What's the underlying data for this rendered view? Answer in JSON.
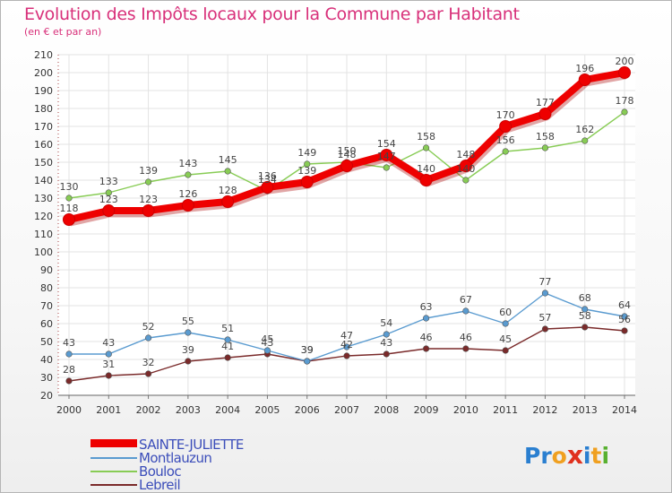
{
  "title": "Evolution des Impôts locaux pour la Commune par Habitant",
  "subtitle": "(en € et par an)",
  "chart_data": {
    "type": "line",
    "x": [
      "2000",
      "2001",
      "2002",
      "2003",
      "2004",
      "2005",
      "2006",
      "2007",
      "2008",
      "2009",
      "2010",
      "2011",
      "2012",
      "2013",
      "2014"
    ],
    "ylim": [
      20,
      210
    ],
    "yticks": [
      20,
      30,
      40,
      50,
      60,
      70,
      80,
      90,
      100,
      110,
      120,
      130,
      140,
      150,
      160,
      170,
      180,
      190,
      200,
      210
    ],
    "grid": true,
    "series": [
      {
        "name": "SAINTE-JULIETTE",
        "color": "#ee0000",
        "values": [
          118,
          123,
          123,
          126,
          128,
          136,
          139,
          148,
          154,
          140,
          148,
          170,
          177,
          196,
          200
        ]
      },
      {
        "name": "Montlauzun",
        "color": "#5a9bd0",
        "values": [
          43,
          43,
          52,
          55,
          51,
          45,
          39,
          47,
          54,
          63,
          67,
          60,
          77,
          68,
          64
        ]
      },
      {
        "name": "Bouloc",
        "color": "#88cc55",
        "values": [
          130,
          133,
          139,
          143,
          145,
          134,
          149,
          150,
          147,
          158,
          140,
          156,
          158,
          162,
          178
        ]
      },
      {
        "name": "Lebreil",
        "color": "#7a2a2a",
        "values": [
          28,
          31,
          32,
          39,
          41,
          43,
          39,
          42,
          43,
          46,
          46,
          45,
          57,
          58,
          56
        ]
      }
    ]
  },
  "labels": {
    "SAINTE-JULIETTE": [
      "118",
      "123",
      "123",
      "126",
      "128",
      "136",
      "139",
      "148",
      "154",
      "140",
      "148",
      "170",
      "177",
      "196",
      "200"
    ],
    "Montlauzun": [
      "43",
      "43",
      "52",
      "55",
      "51",
      "45",
      "39",
      "47",
      "54",
      "63",
      "67",
      "60",
      "77",
      "68",
      "64"
    ],
    "Bouloc": [
      "130",
      "133",
      "139",
      "143",
      "145",
      "134",
      "149",
      "150",
      "147",
      "158",
      "140",
      "156",
      "158",
      "162",
      "178"
    ],
    "Lebreil": [
      "28",
      "31",
      "32",
      "39",
      "41",
      "43",
      "39",
      "42",
      "43",
      "46",
      "46",
      "45",
      "57",
      "58",
      "56"
    ]
  },
  "legend": {
    "items": [
      {
        "label": "SAINTE-JULIETTE",
        "color": "#ee0000"
      },
      {
        "label": "Montlauzun",
        "color": "#5a9bd0"
      },
      {
        "label": "Bouloc",
        "color": "#88cc55"
      },
      {
        "label": "Lebreil",
        "color": "#7a2a2a"
      }
    ]
  },
  "logo": {
    "letters": [
      "P",
      "r",
      "o",
      "x",
      "i",
      "t",
      "i"
    ],
    "colors": [
      "#2a7fd0",
      "#2a7fd0",
      "#f0a020",
      "#e0301e",
      "#2a7fd0",
      "#f0a020",
      "#58b030"
    ]
  }
}
